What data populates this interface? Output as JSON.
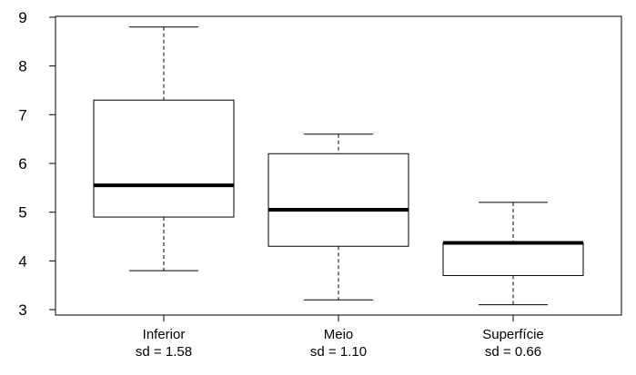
{
  "chart_data": {
    "type": "boxplot",
    "title": "",
    "xlabel": "",
    "ylabel": "",
    "ylim": [
      3,
      9
    ],
    "yticks": [
      "3",
      "4",
      "5",
      "6",
      "7",
      "8",
      "9"
    ],
    "grid": false,
    "categories": [
      {
        "name": "Inferior",
        "note": "sd = 1.58",
        "min": 3.8,
        "q1": 4.9,
        "median": 5.55,
        "q3": 7.3,
        "max": 8.8
      },
      {
        "name": "Meio",
        "note": "sd = 1.10",
        "min": 3.2,
        "q1": 4.3,
        "median": 5.05,
        "q3": 6.2,
        "max": 6.6
      },
      {
        "name": "Superfície",
        "note": "sd = 0.66",
        "min": 3.1,
        "q1": 3.7,
        "median": 4.37,
        "q3": 4.37,
        "max": 5.2
      }
    ],
    "colors": {
      "box_fill": "#ffffff",
      "stroke": "#000000"
    }
  }
}
